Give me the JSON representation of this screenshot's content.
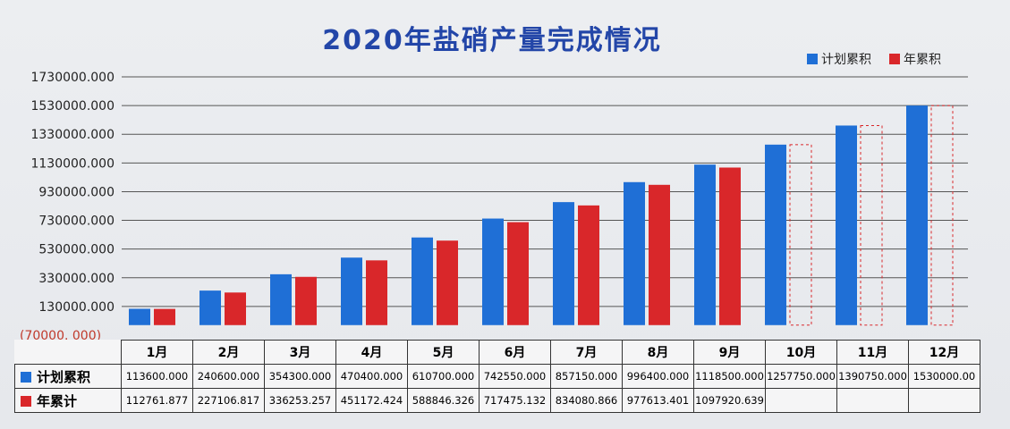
{
  "title": "2020年盐硝产量完成情况",
  "colors": {
    "plan": "#1f6fd6",
    "actual": "#d9272a",
    "grid": "#555555",
    "title": "#2346a8"
  },
  "legend": {
    "plan_label": "计划累积",
    "actual_label": "年累积"
  },
  "table": {
    "plan_row_label": "计划累积",
    "actual_row_label": "年累计"
  },
  "chart_data": {
    "type": "bar",
    "title": "2020年盐硝产量完成情况",
    "categories": [
      "1月",
      "2月",
      "3月",
      "4月",
      "5月",
      "6月",
      "7月",
      "8月",
      "9月",
      "10月",
      "11月",
      "12月"
    ],
    "y_ticks": [
      "1730000.000",
      "1530000.000",
      "1330000.000",
      "1130000.000",
      "930000.000",
      "730000.000",
      "530000.000",
      "330000.000",
      "130000.000",
      "(70000. 000)"
    ],
    "ylim": [
      -70000,
      1730000
    ],
    "grid": true,
    "legend_position": "top-right",
    "series": [
      {
        "name": "计划累积",
        "values": [
          113600,
          240600,
          354300,
          470400,
          610700,
          742550,
          857150,
          996400,
          1118500,
          1257750,
          1390750,
          1530000
        ],
        "labels": [
          "113600.000",
          "240600.000",
          "354300.000",
          "470400.000",
          "610700.000",
          "742550.000",
          "857150.000",
          "996400.000",
          "1118500.000",
          "1257750.000",
          "1390750.000",
          "1530000.00"
        ]
      },
      {
        "name": "年累积",
        "values": [
          112761.877,
          227106.817,
          336253.257,
          451172.424,
          588846.326,
          717475.132,
          834080.866,
          977613.401,
          1097920.639,
          null,
          null,
          null
        ],
        "labels": [
          "112761.877",
          "227106.817",
          "336253.257",
          "451172.424",
          "588846.326",
          "717475.132",
          "834080.866",
          "977613.401",
          "1097920.639",
          "",
          "",
          ""
        ]
      }
    ]
  }
}
